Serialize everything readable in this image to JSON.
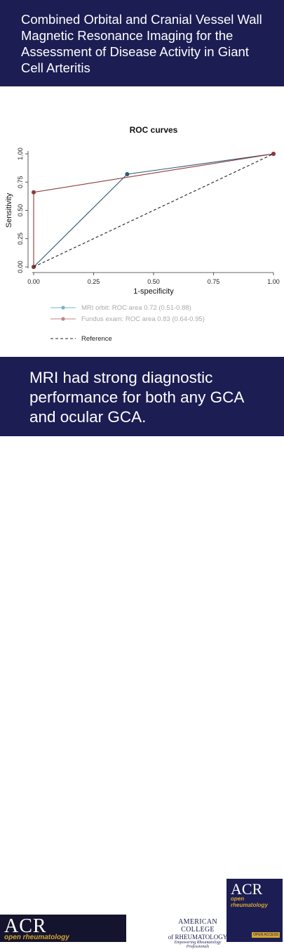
{
  "header": {
    "title": "Combined Orbital and Cranial Vessel Wall Magnetic Resonance Imaging for the Assessment of Disease Activity in Giant Cell Arteritis"
  },
  "chart_data": {
    "type": "line",
    "title": "ROC curves",
    "xlabel": "1-specificity",
    "ylabel": "Sensitivity",
    "xlim": [
      0,
      1
    ],
    "ylim": [
      0,
      1
    ],
    "x_ticks": [
      "0.00",
      "0.25",
      "0.50",
      "0.75",
      "1.00"
    ],
    "y_ticks": [
      "0.00",
      "0.25",
      "0.50",
      "0.75",
      "1.00"
    ],
    "grid": false,
    "legend_position": "bottom",
    "series": [
      {
        "name": "MRI orbit: ROC area 0.72 (0.51-0.88)",
        "color": "#2f5a73",
        "marker_color": "#7fb0c2",
        "x": [
          0,
          0.39,
          1
        ],
        "y": [
          0,
          0.82,
          1
        ]
      },
      {
        "name": "Fundus exam: ROC area 0.83 (0.64-0.95)",
        "color": "#8e3a3a",
        "marker_color": "#c08585",
        "x": [
          0,
          0,
          1
        ],
        "y": [
          0,
          0.66,
          1
        ]
      },
      {
        "name": "Reference",
        "color": "#222222",
        "dashed": true,
        "x": [
          0,
          1
        ],
        "y": [
          0,
          1
        ]
      }
    ]
  },
  "message": {
    "text": "MRI had strong diagnostic performance for both any GCA and ocular GCA."
  },
  "footer": {
    "acr_logo_text": "ACR",
    "open_rheum_text": "open rheumatology",
    "college_line1": "AMERICAN COLLEGE",
    "college_line2": "of RHEUMATOLOGY",
    "college_tagline": "Empowering Rheumatology Professionals",
    "cover_acr": "ACR",
    "cover_open_rheum": "open rheumatology",
    "cover_badge": "OPEN ACCESS"
  }
}
